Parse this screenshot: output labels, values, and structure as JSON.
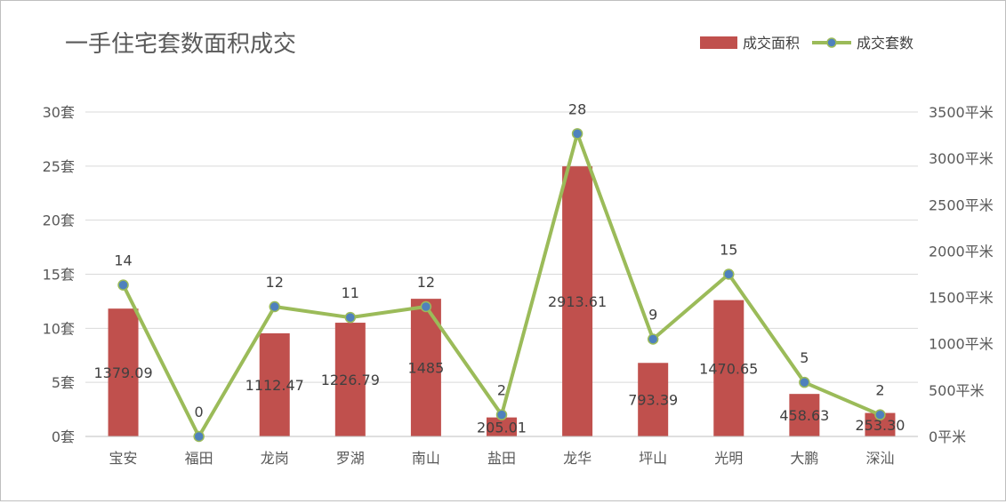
{
  "chart_data": {
    "type": "bar+line",
    "title": "一手住宅套数面积成交",
    "categories": [
      "宝安",
      "福田",
      "龙岗",
      "罗湖",
      "南山",
      "盐田",
      "龙华",
      "坪山",
      "光明",
      "大鹏",
      "深汕"
    ],
    "series": [
      {
        "name": "成交面积",
        "type": "bar",
        "axis": "right",
        "color": "#c0504d",
        "values": [
          1379.09,
          0,
          1112.47,
          1226.79,
          1485,
          205.01,
          2913.61,
          793.39,
          1470.65,
          458.63,
          253.3
        ],
        "labels": [
          "1379.09",
          "",
          "1112.47",
          "1226.79",
          "1485",
          "205.01",
          "2913.61",
          "793.39",
          "1470.65",
          "458.63",
          "253.30"
        ]
      },
      {
        "name": "成交套数",
        "type": "line",
        "axis": "left",
        "color": "#9bbb59",
        "marker_color": "#4f81bd",
        "values": [
          14,
          0,
          12,
          11,
          12,
          2,
          28,
          9,
          15,
          5,
          2
        ],
        "labels": [
          "14",
          "0",
          "12",
          "11",
          "12",
          "2",
          "28",
          "9",
          "15",
          "5",
          "2"
        ]
      }
    ],
    "y_left": {
      "ylim": [
        0,
        30
      ],
      "ticks": [
        0,
        5,
        10,
        15,
        20,
        25,
        30
      ],
      "tick_labels": [
        "0套",
        "5套",
        "10套",
        "15套",
        "20套",
        "25套",
        "30套"
      ]
    },
    "y_right": {
      "ylim": [
        0,
        3500
      ],
      "ticks": [
        0,
        500,
        1000,
        1500,
        2000,
        2500,
        3000,
        3500
      ],
      "tick_labels": [
        "0平米",
        "500平米",
        "1000平米",
        "1500平米",
        "2000平米",
        "2500平米",
        "3000平米",
        "3500平米"
      ]
    },
    "grid": true,
    "legend_position": "top-right"
  }
}
